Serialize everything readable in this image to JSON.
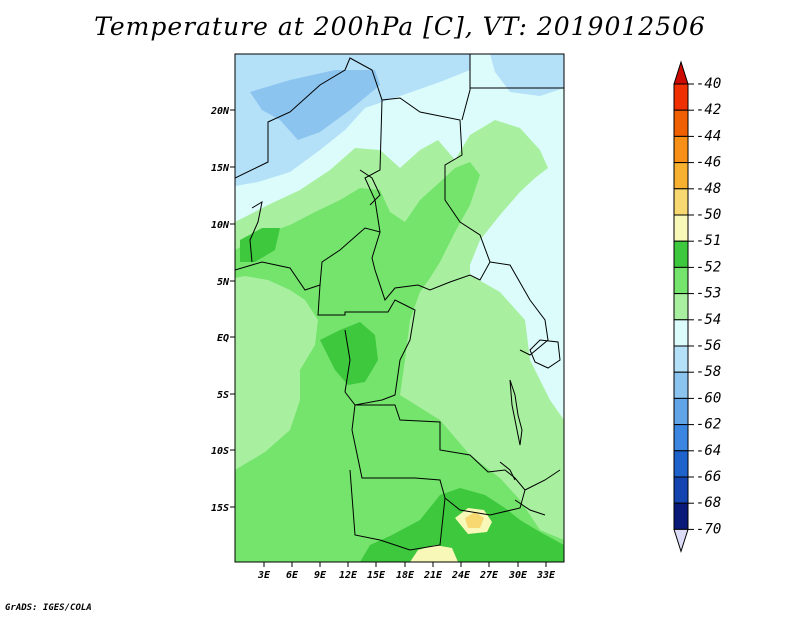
{
  "title": "Temperature at 200hPa [C], VT: 2019012506",
  "credit": "GrADS: IGES/COLA",
  "map": {
    "region": "Central Africa",
    "lon_labels": [
      "3E",
      "6E",
      "9E",
      "12E",
      "15E",
      "18E",
      "21E",
      "24E",
      "27E",
      "30E",
      "33E"
    ],
    "lat_labels": [
      "20N",
      "15N",
      "10N",
      "5N",
      "EQ",
      "5S",
      "10S",
      "15S"
    ],
    "background_color": "#dcfcfc"
  },
  "colorbar": {
    "labels": [
      "-40",
      "-42",
      "-44",
      "-46",
      "-48",
      "-50",
      "-51",
      "-52",
      "-53",
      "-54",
      "-56",
      "-58",
      "-60",
      "-62",
      "-64",
      "-66",
      "-68",
      "-70"
    ],
    "colors": [
      "#cc0a00",
      "#f03000",
      "#f06000",
      "#f89018",
      "#f8b030",
      "#f8d870",
      "#f8f8b8",
      "#3ec83e",
      "#74e46c",
      "#a8f0a0",
      "#dcfcfc",
      "#b4e0f8",
      "#8cc4f0",
      "#62a4e8",
      "#3a86e0",
      "#1e62cc",
      "#1444b0",
      "#0a1a78",
      "#dcdcf8"
    ]
  }
}
